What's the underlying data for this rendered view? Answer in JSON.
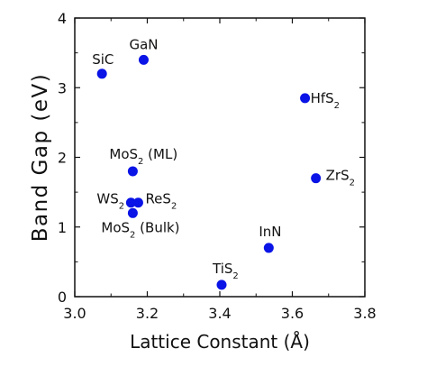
{
  "chart_data": {
    "type": "scatter",
    "xlabel": "Lattice Constant (Å)",
    "ylabel": "Band Gap (eV)",
    "xlim": [
      3.0,
      3.8
    ],
    "ylim": [
      0,
      4
    ],
    "xticks": [
      "3.0",
      "3.2",
      "3.4",
      "3.6",
      "3.8"
    ],
    "yticks": [
      "0",
      "1",
      "2",
      "3",
      "4"
    ],
    "grid": false,
    "legend": "none",
    "marker_color": "#0a14e6",
    "points": [
      {
        "label": "SiC",
        "x": 3.075,
        "y": 3.2
      },
      {
        "label": "GaN",
        "x": 3.19,
        "y": 3.4
      },
      {
        "label": "HfS2",
        "x": 3.635,
        "y": 2.85
      },
      {
        "label": "MoS2 (ML)",
        "x": 3.16,
        "y": 1.8
      },
      {
        "label": "ZrS2",
        "x": 3.665,
        "y": 1.7
      },
      {
        "label": "WS2",
        "x": 3.155,
        "y": 1.35
      },
      {
        "label": "ReS2",
        "x": 3.175,
        "y": 1.35
      },
      {
        "label": "MoS2 (Bulk)",
        "x": 3.16,
        "y": 1.2
      },
      {
        "label": "InN",
        "x": 3.535,
        "y": 0.7
      },
      {
        "label": "TiS2",
        "x": 3.405,
        "y": 0.17
      }
    ]
  }
}
